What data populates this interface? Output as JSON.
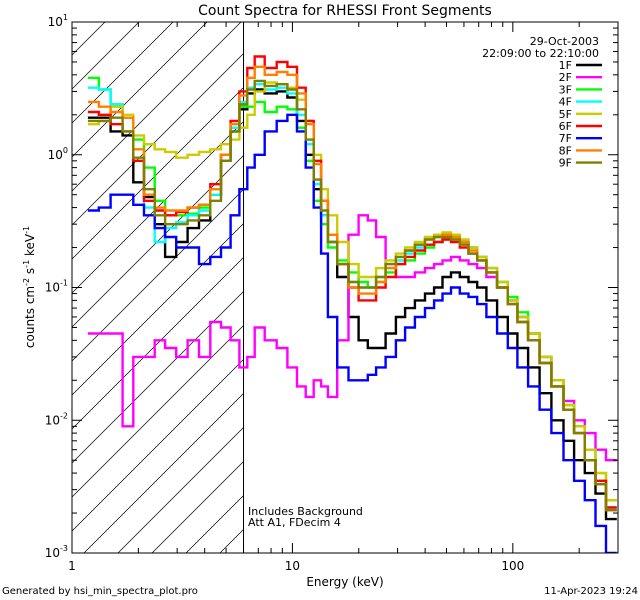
{
  "chart_data": {
    "type": "line",
    "title": "Count Spectra for RHESSI Front Segments",
    "xlabel": "Energy (keV)",
    "ylabel_parts": [
      "counts cm",
      "-2",
      " s",
      "-1",
      " keV",
      "-1"
    ],
    "xscale": "log",
    "yscale": "log",
    "xlim": [
      1,
      300
    ],
    "ylim": [
      0.001,
      10
    ],
    "x_ticks": [
      {
        "value": 1,
        "label": "1"
      },
      {
        "value": 10,
        "label": "10"
      },
      {
        "value": 100,
        "label": "100"
      }
    ],
    "y_ticks": [
      {
        "value": 0.001,
        "label": "10",
        "exp": "-3"
      },
      {
        "value": 0.01,
        "label": "10",
        "exp": "-2"
      },
      {
        "value": 0.1,
        "label": "10",
        "exp": "-1"
      },
      {
        "value": 1,
        "label": "10",
        "exp": "0"
      },
      {
        "value": 10,
        "label": "10",
        "exp": "1"
      }
    ],
    "date": "29-Oct-2003",
    "time_range": "22:09:00 to 22:10:00",
    "hatched_region": {
      "x_start": 1,
      "x_end": 6
    },
    "vertical_line_x": 6,
    "annotations": [
      "Includes Background",
      "Att A1, FDecim 4"
    ],
    "footer_left": "Generated by hsi_min_spectra_plot.pro",
    "footer_right": "11-Apr-2023 19:24",
    "energy_grid": [
      1.25,
      1.4,
      1.6,
      1.8,
      2.0,
      2.25,
      2.5,
      2.8,
      3.15,
      3.55,
      4.0,
      4.5,
      5.0,
      5.5,
      6.0,
      6.5,
      7,
      8,
      9,
      10,
      11,
      12,
      13,
      14,
      15,
      17,
      19,
      21,
      23,
      25,
      28,
      31,
      34,
      38,
      42,
      46,
      50,
      55,
      60,
      66,
      72,
      80,
      90,
      100,
      110,
      125,
      140,
      160,
      180,
      200,
      225,
      250,
      280
    ],
    "series": [
      {
        "name": "1F",
        "color": "#000000",
        "values": [
          1.9,
          1.9,
          1.5,
          1.4,
          0.62,
          0.48,
          0.3,
          0.17,
          0.22,
          0.28,
          0.32,
          0.5,
          0.9,
          1.5,
          2.2,
          2.9,
          3.1,
          2.9,
          3.0,
          2.7,
          1.8,
          1.0,
          0.55,
          0.35,
          0.22,
          0.12,
          0.06,
          0.04,
          0.035,
          0.035,
          0.045,
          0.06,
          0.07,
          0.08,
          0.09,
          0.1,
          0.12,
          0.13,
          0.12,
          0.11,
          0.1,
          0.08,
          0.06,
          0.045,
          0.035,
          0.025,
          0.016,
          0.01,
          0.007,
          0.005,
          0.004,
          0.0028,
          0.0018
        ]
      },
      {
        "name": "2F",
        "color": "#ff00ff",
        "values": [
          0.045,
          0.045,
          0.045,
          0.009,
          0.03,
          0.03,
          0.04,
          0.035,
          0.03,
          0.04,
          0.03,
          0.055,
          0.05,
          0.04,
          0.025,
          0.03,
          0.05,
          0.04,
          0.035,
          0.025,
          0.018,
          0.015,
          0.02,
          0.018,
          0.015,
          0.04,
          0.25,
          0.35,
          0.32,
          0.24,
          0.15,
          0.12,
          0.12,
          0.13,
          0.14,
          0.15,
          0.16,
          0.17,
          0.16,
          0.15,
          0.14,
          0.12,
          0.1,
          0.08,
          0.06,
          0.045,
          0.03,
          0.02,
          0.014,
          0.01,
          0.008,
          0.006,
          0.005
        ]
      },
      {
        "name": "3F",
        "color": "#00ff00",
        "values": [
          3.8,
          3.1,
          2.4,
          1.9,
          1.3,
          0.8,
          0.45,
          0.35,
          0.35,
          0.36,
          0.4,
          0.55,
          1.0,
          1.6,
          2.3,
          2.3,
          2.5,
          2.1,
          2.3,
          2.2,
          1.6,
          0.9,
          0.45,
          0.3,
          0.2,
          0.16,
          0.13,
          0.11,
          0.1,
          0.11,
          0.13,
          0.15,
          0.16,
          0.18,
          0.2,
          0.22,
          0.24,
          0.25,
          0.22,
          0.2,
          0.17,
          0.14,
          0.11,
          0.085,
          0.065,
          0.045,
          0.03,
          0.02,
          0.013,
          0.009,
          0.006,
          0.004,
          0.0025
        ]
      },
      {
        "name": "4F",
        "color": "#00ffff",
        "values": [
          3.2,
          3.1,
          2.4,
          1.9,
          0.9,
          0.4,
          0.22,
          0.28,
          0.31,
          0.35,
          0.38,
          0.5,
          0.9,
          1.6,
          2.5,
          3.2,
          3.4,
          3.1,
          3.2,
          2.9,
          2.0,
          1.2,
          0.6,
          0.35,
          0.22,
          0.15,
          0.11,
          0.1,
          0.1,
          0.12,
          0.14,
          0.16,
          0.18,
          0.2,
          0.21,
          0.22,
          0.23,
          0.24,
          0.22,
          0.2,
          0.17,
          0.14,
          0.11,
          0.08,
          0.06,
          0.04,
          0.027,
          0.018,
          0.012,
          0.008,
          0.005,
          0.0035,
          0.0022
        ]
      },
      {
        "name": "5F",
        "color": "#cccc00",
        "values": [
          1.7,
          1.8,
          2.3,
          2.0,
          1.4,
          1.2,
          1.1,
          1.05,
          0.95,
          1.0,
          1.05,
          1.1,
          1.2,
          1.3,
          1.6,
          2.0,
          3.0,
          3.5,
          3.4,
          3.2,
          2.6,
          1.8,
          1.0,
          0.55,
          0.35,
          0.22,
          0.15,
          0.12,
          0.12,
          0.14,
          0.16,
          0.18,
          0.2,
          0.22,
          0.24,
          0.25,
          0.26,
          0.25,
          0.23,
          0.2,
          0.17,
          0.14,
          0.11,
          0.08,
          0.06,
          0.045,
          0.03,
          0.02,
          0.013,
          0.009,
          0.006,
          0.004,
          0.0025
        ]
      },
      {
        "name": "6F",
        "color": "#ff0000",
        "values": [
          2.1,
          2.0,
          1.7,
          1.5,
          0.9,
          0.45,
          0.38,
          0.35,
          0.37,
          0.4,
          0.42,
          0.6,
          1.0,
          1.8,
          3.0,
          4.5,
          5.5,
          4.5,
          5.0,
          4.6,
          3.2,
          1.8,
          0.9,
          0.45,
          0.25,
          0.15,
          0.1,
          0.08,
          0.08,
          0.1,
          0.12,
          0.15,
          0.17,
          0.19,
          0.21,
          0.22,
          0.23,
          0.22,
          0.2,
          0.18,
          0.16,
          0.13,
          0.1,
          0.075,
          0.055,
          0.04,
          0.027,
          0.018,
          0.012,
          0.008,
          0.005,
          0.0035,
          0.0022
        ]
      },
      {
        "name": "7F",
        "color": "#0000ff",
        "values": [
          0.38,
          0.4,
          0.5,
          0.5,
          0.42,
          0.35,
          0.28,
          0.24,
          0.2,
          0.2,
          0.15,
          0.17,
          0.2,
          0.35,
          0.55,
          0.8,
          1.0,
          1.5,
          1.8,
          2.0,
          1.5,
          0.8,
          0.4,
          0.18,
          0.06,
          0.025,
          0.02,
          0.02,
          0.022,
          0.025,
          0.03,
          0.04,
          0.05,
          0.06,
          0.07,
          0.08,
          0.09,
          0.1,
          0.09,
          0.085,
          0.075,
          0.06,
          0.045,
          0.035,
          0.025,
          0.018,
          0.012,
          0.008,
          0.005,
          0.0035,
          0.0025,
          0.0016,
          0.001
        ]
      },
      {
        "name": "8F",
        "color": "#ff8000",
        "values": [
          2.5,
          2.3,
          2.1,
          1.9,
          1.1,
          0.5,
          0.4,
          0.38,
          0.38,
          0.4,
          0.42,
          0.55,
          1.0,
          1.7,
          2.8,
          3.8,
          4.6,
          4.0,
          4.2,
          4.0,
          2.9,
          1.7,
          0.85,
          0.45,
          0.25,
          0.15,
          0.1,
          0.09,
          0.09,
          0.11,
          0.14,
          0.17,
          0.19,
          0.21,
          0.23,
          0.24,
          0.25,
          0.24,
          0.22,
          0.19,
          0.16,
          0.13,
          0.1,
          0.075,
          0.055,
          0.04,
          0.027,
          0.018,
          0.012,
          0.008,
          0.005,
          0.0033,
          0.0021
        ]
      },
      {
        "name": "9F",
        "color": "#808000",
        "values": [
          1.8,
          1.8,
          1.9,
          1.5,
          0.95,
          0.55,
          0.35,
          0.3,
          0.3,
          0.32,
          0.35,
          0.45,
          0.9,
          1.5,
          2.4,
          3.1,
          3.6,
          3.3,
          3.4,
          3.1,
          2.2,
          1.3,
          0.65,
          0.38,
          0.22,
          0.15,
          0.11,
          0.1,
          0.1,
          0.12,
          0.15,
          0.17,
          0.19,
          0.21,
          0.23,
          0.24,
          0.24,
          0.23,
          0.21,
          0.18,
          0.16,
          0.13,
          0.1,
          0.075,
          0.055,
          0.04,
          0.027,
          0.018,
          0.012,
          0.008,
          0.005,
          0.0033,
          0.0021
        ]
      }
    ]
  }
}
